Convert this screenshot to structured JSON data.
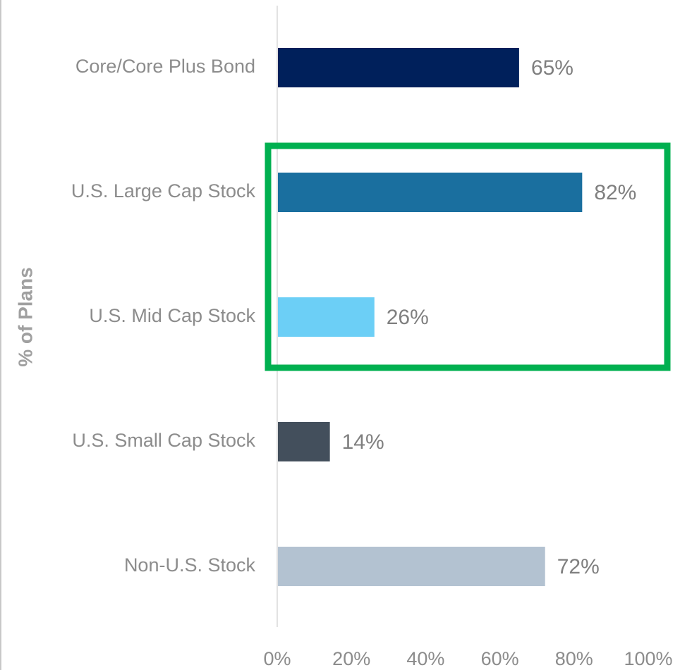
{
  "chart_data": {
    "type": "barh",
    "y_label": "% of Plans",
    "categories": [
      "Core/Core Plus Bond",
      "U.S. Large Cap Stock",
      "U.S. Mid Cap Stock",
      "U.S. Small Cap Stock",
      "Non-U.S. Stock"
    ],
    "values": [
      65,
      82,
      26,
      14,
      72
    ],
    "value_labels": [
      "65%",
      "82%",
      "26%",
      "14%",
      "72%"
    ],
    "colors": [
      "#00205b",
      "#1a6f9f",
      "#6ccff6",
      "#434f5c",
      "#b3c2d1"
    ],
    "xlim": [
      0,
      100
    ],
    "xticks": [
      {
        "value": 0,
        "label": "0%"
      },
      {
        "value": 20,
        "label": "20%"
      },
      {
        "value": 40,
        "label": "40%"
      },
      {
        "value": 60,
        "label": "60%"
      },
      {
        "value": 80,
        "label": "80%"
      },
      {
        "value": 100,
        "label": "100%"
      }
    ],
    "grid": false
  }
}
